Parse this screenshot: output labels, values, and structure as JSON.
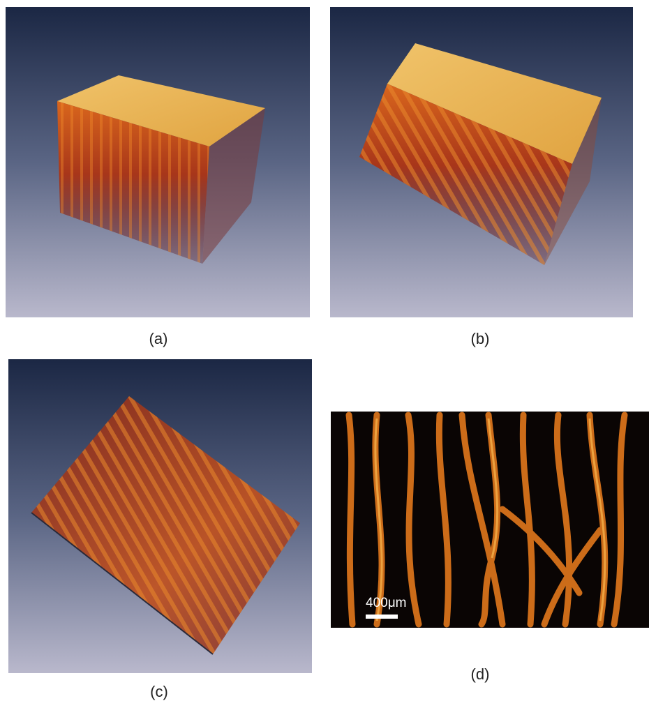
{
  "panels": [
    {
      "label": "(a)"
    },
    {
      "label": "(b)"
    },
    {
      "label": "(c)"
    },
    {
      "label": "(d)"
    }
  ],
  "scale_bar": "400μm"
}
